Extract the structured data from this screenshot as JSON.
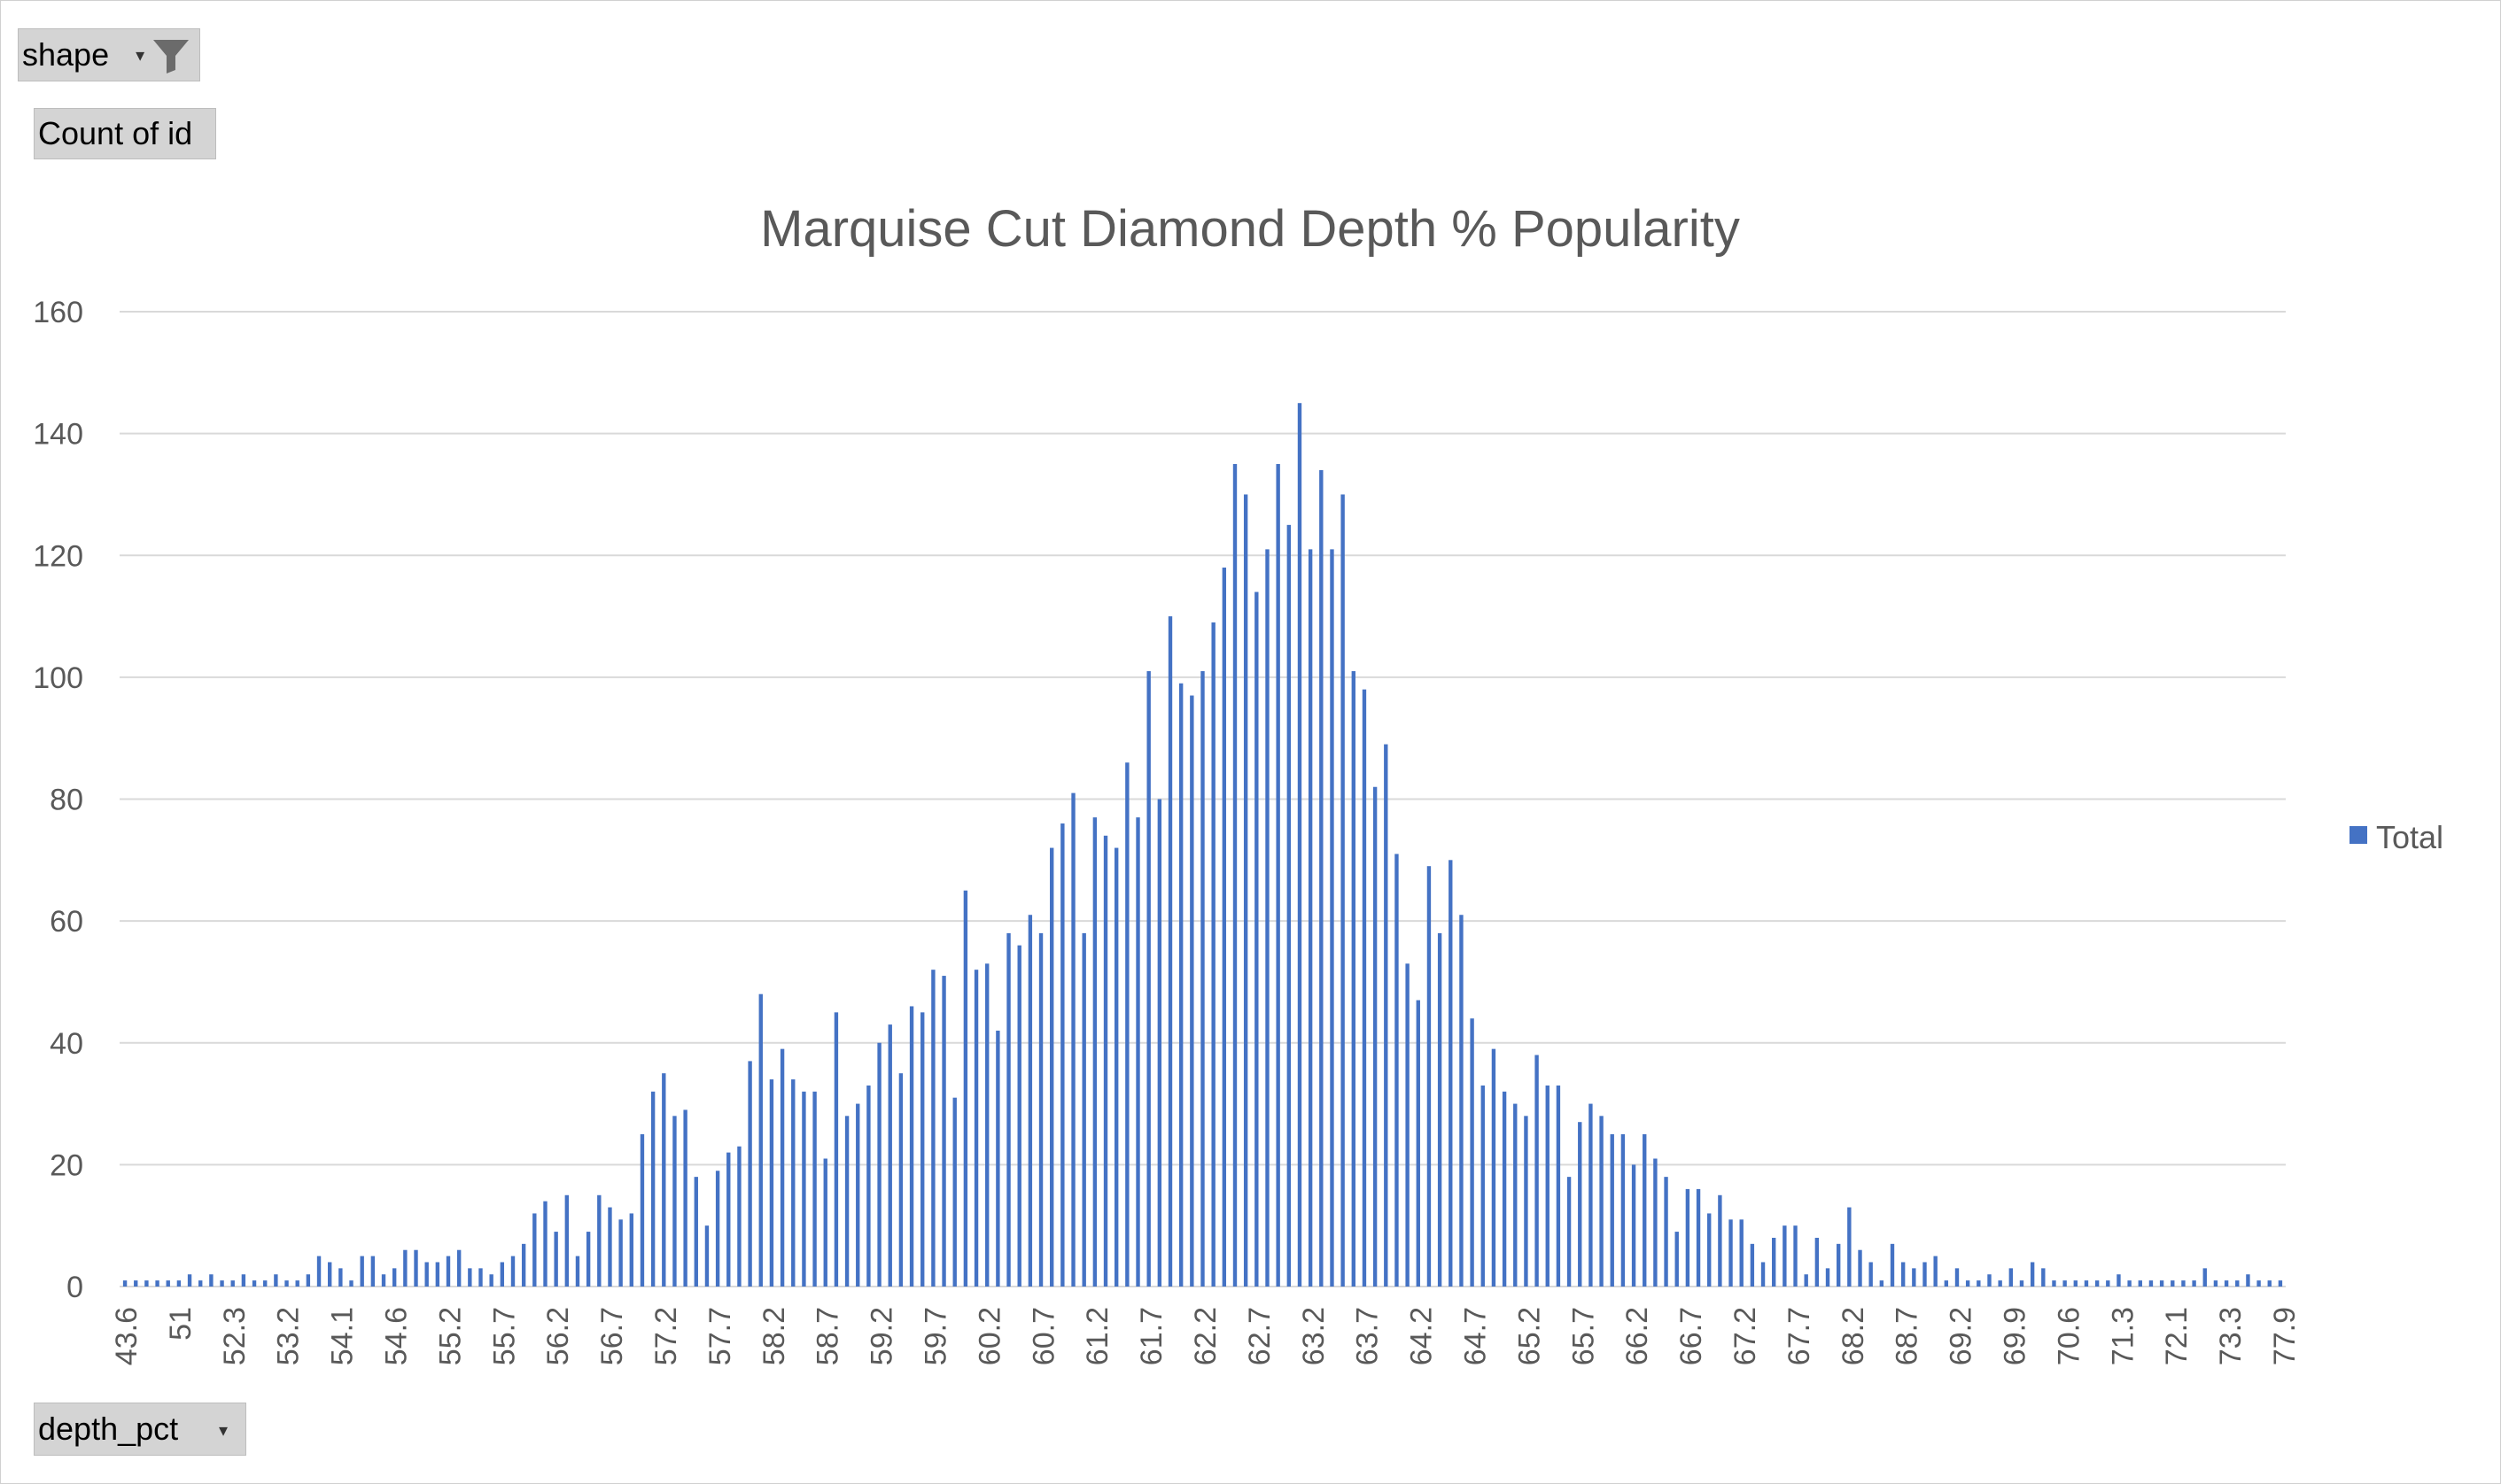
{
  "pivot": {
    "filter_label": "shape",
    "value_label": "Count of id",
    "axis_label": "depth_pct"
  },
  "chart_data": {
    "type": "bar",
    "title": "Marquise Cut Diamond Depth % Popularity",
    "xlabel": "",
    "ylabel": "",
    "ylim": [
      0,
      160
    ],
    "yticks": [
      0,
      20,
      40,
      60,
      80,
      100,
      120,
      140,
      160
    ],
    "grid": true,
    "legend_position": "right",
    "bar_color": "#4472C4",
    "grid_color": "#d9d9d9",
    "x_tick_labels": [
      "43.6",
      "51",
      "52.3",
      "53.2",
      "54.1",
      "54.6",
      "55.2",
      "55.7",
      "56.2",
      "56.7",
      "57.2",
      "57.7",
      "58.2",
      "58.7",
      "59.2",
      "59.7",
      "60.2",
      "60.7",
      "61.2",
      "61.7",
      "62.2",
      "62.7",
      "63.2",
      "63.7",
      "64.2",
      "64.7",
      "65.2",
      "65.7",
      "66.2",
      "66.7",
      "67.2",
      "67.7",
      "68.2",
      "68.7",
      "69.2",
      "69.9",
      "70.6",
      "71.3",
      "72.1",
      "73.3",
      "77.9"
    ],
    "series": [
      {
        "name": "Total",
        "values": [
          1,
          1,
          1,
          1,
          1,
          1,
          2,
          1,
          2,
          1,
          1,
          2,
          1,
          1,
          2,
          1,
          1,
          2,
          5,
          4,
          3,
          1,
          5,
          5,
          2,
          3,
          6,
          6,
          4,
          4,
          5,
          6,
          3,
          3,
          2,
          4,
          5,
          7,
          12,
          14,
          9,
          15,
          5,
          9,
          15,
          13,
          11,
          12,
          25,
          32,
          35,
          28,
          29,
          18,
          10,
          19,
          22,
          23,
          37,
          48,
          34,
          39,
          34,
          32,
          32,
          21,
          45,
          28,
          30,
          33,
          40,
          43,
          35,
          46,
          45,
          52,
          51,
          31,
          65,
          52,
          53,
          42,
          58,
          56,
          61,
          58,
          72,
          76,
          81,
          58,
          77,
          74,
          72,
          86,
          77,
          101,
          80,
          110,
          99,
          97,
          101,
          109,
          118,
          135,
          130,
          114,
          121,
          135,
          125,
          145,
          121,
          134,
          121,
          130,
          101,
          98,
          82,
          89,
          71,
          53,
          47,
          69,
          58,
          70,
          61,
          44,
          33,
          39,
          32,
          30,
          28,
          38,
          33,
          33,
          18,
          27,
          30,
          28,
          25,
          25,
          20,
          25,
          21,
          18,
          9,
          16,
          16,
          12,
          15,
          11,
          11,
          7,
          4,
          8,
          10,
          10,
          2,
          8,
          3,
          7,
          13,
          6,
          4,
          1,
          7,
          4,
          3,
          4,
          5,
          1,
          3,
          1,
          1,
          2,
          1,
          3,
          1,
          4,
          3,
          1,
          1,
          1,
          1,
          1,
          1,
          2,
          1,
          1,
          1,
          1,
          1,
          1,
          1,
          3,
          1,
          1,
          1,
          2,
          1,
          1,
          1
        ]
      }
    ]
  }
}
